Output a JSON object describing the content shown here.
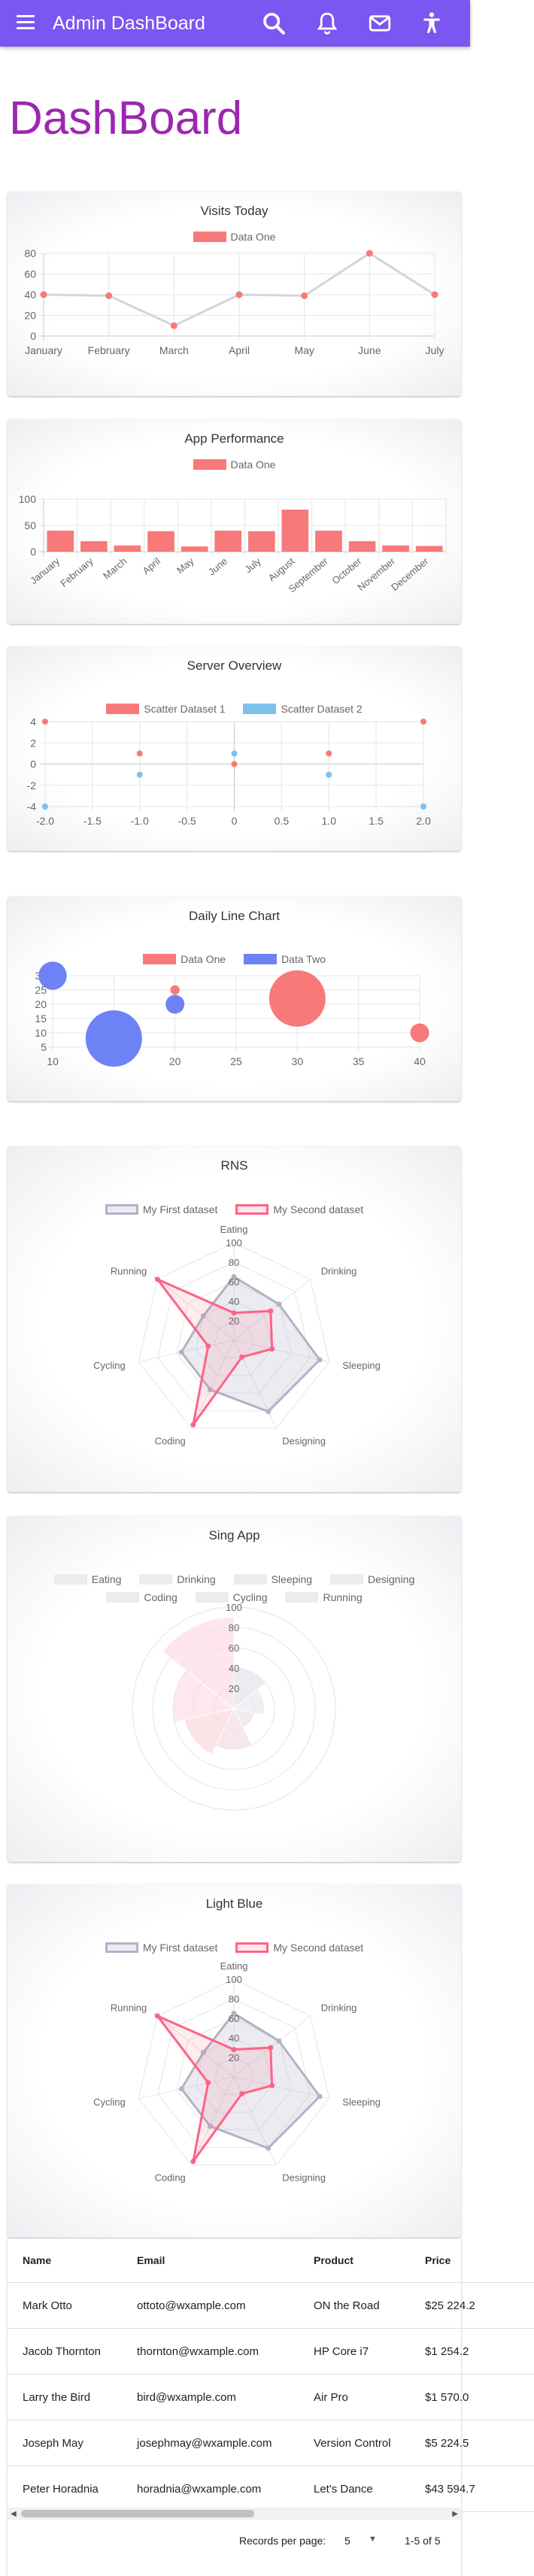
{
  "app": {
    "title": "Admin DashBoard"
  },
  "header_icons": [
    "menu-icon",
    "search-icon",
    "bell-icon",
    "mail-icon",
    "accessibility-icon"
  ],
  "page": {
    "title": "DashBoard"
  },
  "colors": {
    "primary": "#7b56f0",
    "title": "#9c27b0",
    "red": "#f87979",
    "red_border": "#ff6384",
    "blue": "#6c82f5",
    "sky": "#7ec0ee",
    "gray": "#b3b1c6"
  },
  "visits": {
    "title": "Visits Today",
    "chart_data": {
      "type": "line",
      "title": "Visits Today",
      "categories": [
        "January",
        "February",
        "March",
        "April",
        "May",
        "June",
        "July"
      ],
      "series": [
        {
          "name": "Data One",
          "values": [
            40,
            39,
            10,
            40,
            39,
            80,
            40
          ]
        }
      ],
      "ylim": [
        0,
        80
      ],
      "yticks": [
        0,
        20,
        40,
        60,
        80
      ]
    }
  },
  "performance": {
    "title": "App Performance",
    "chart_data": {
      "type": "bar",
      "title": "App Performance",
      "categories": [
        "January",
        "February",
        "March",
        "April",
        "May",
        "June",
        "July",
        "August",
        "September",
        "October",
        "November",
        "December"
      ],
      "series": [
        {
          "name": "Data One",
          "values": [
            40,
            20,
            12,
            39,
            10,
            40,
            39,
            80,
            40,
            20,
            12,
            11
          ]
        }
      ],
      "ylim": [
        0,
        100
      ],
      "yticks": [
        0,
        50,
        100
      ]
    }
  },
  "server": {
    "title": "Server Overview",
    "chart_data": {
      "type": "scatter",
      "title": "Server Overview",
      "xlim": [
        -2,
        2
      ],
      "ylim": [
        -4,
        4
      ],
      "xticks": [
        "-2.0",
        "-1.5",
        "-1.0",
        "-0.5",
        "0",
        "0.5",
        "1.0",
        "1.5",
        "2.0"
      ],
      "yticks": [
        "4",
        "2",
        "0",
        "-2",
        "-4"
      ],
      "series": [
        {
          "name": "Scatter Dataset 1",
          "points": [
            [
              -2,
              4
            ],
            [
              -1,
              1
            ],
            [
              0,
              0
            ],
            [
              1,
              1
            ],
            [
              2,
              4
            ]
          ]
        },
        {
          "name": "Scatter Dataset 2",
          "points": [
            [
              -2,
              -4
            ],
            [
              -1,
              -1
            ],
            [
              0,
              1
            ],
            [
              1,
              -1
            ],
            [
              2,
              -4
            ]
          ]
        }
      ]
    }
  },
  "daily": {
    "title": "Daily Line Chart",
    "chart_data": {
      "type": "scatter",
      "title": "Daily Line Chart",
      "xlim": [
        10,
        40
      ],
      "ylim": [
        5,
        30
      ],
      "xticks": [
        "10",
        "15",
        "20",
        "25",
        "30",
        "35",
        "40"
      ],
      "yticks": [
        "30",
        "25",
        "20",
        "15",
        "10",
        "5"
      ],
      "series": [
        {
          "name": "Data One",
          "points": [
            [
              20,
              25,
              5
            ],
            [
              30,
              22,
              30
            ],
            [
              40,
              10,
              10
            ]
          ]
        },
        {
          "name": "Data Two",
          "points": [
            [
              10,
              30,
              15
            ],
            [
              15,
              8,
              30
            ],
            [
              20,
              20,
              10
            ]
          ]
        }
      ]
    }
  },
  "rns": {
    "title": "RNS",
    "chart_data": {
      "type": "radar",
      "title": "RNS",
      "labels": [
        "Eating",
        "Drinking",
        "Sleeping",
        "Designing",
        "Coding",
        "Cycling",
        "Running"
      ],
      "rlim": [
        0,
        100
      ],
      "rticks": [
        "100",
        "80",
        "60",
        "40",
        "20"
      ],
      "series": [
        {
          "name": "My First dataset",
          "values": [
            65,
            59,
            90,
            81,
            56,
            55,
            40
          ]
        },
        {
          "name": "My Second dataset",
          "values": [
            28,
            48,
            40,
            19,
            96,
            27,
            100
          ]
        }
      ]
    }
  },
  "sing": {
    "title": "Sing App",
    "chart_data": {
      "type": "polarArea",
      "title": "Sing App",
      "labels": [
        "Eating",
        "Drinking",
        "Sleeping",
        "Designing",
        "Coding",
        "Cycling",
        "Running"
      ],
      "rlim": [
        0,
        100
      ],
      "rticks": [
        "100",
        "80",
        "60",
        "40",
        "20"
      ],
      "series": [
        {
          "name": "",
          "values": [
            40,
            30,
            20,
            40,
            50,
            60,
            90
          ]
        }
      ]
    }
  },
  "lightblue": {
    "title": "Light Blue",
    "chart_data": {
      "type": "radar",
      "title": "Light Blue",
      "labels": [
        "Eating",
        "Drinking",
        "Sleeping",
        "Designing",
        "Coding",
        "Cycling",
        "Running"
      ],
      "rlim": [
        0,
        100
      ],
      "rticks": [
        "100",
        "80",
        "60",
        "40",
        "20"
      ],
      "series": [
        {
          "name": "My First dataset",
          "values": [
            65,
            59,
            90,
            81,
            56,
            55,
            40
          ]
        },
        {
          "name": "My Second dataset",
          "values": [
            28,
            48,
            40,
            19,
            96,
            27,
            100
          ]
        }
      ]
    }
  },
  "table": {
    "columns": [
      "Name",
      "Email",
      "Product",
      "Price"
    ],
    "rows": [
      [
        "Mark Otto",
        "ottoto@wxample.com",
        "ON the Road",
        "$25 224.2"
      ],
      [
        "Jacob Thornton",
        "thornton@wxample.com",
        "HP Core i7",
        "$1 254.2"
      ],
      [
        "Larry the Bird",
        "bird@wxample.com",
        "Air Pro",
        "$1 570.0"
      ],
      [
        "Joseph May",
        "josephmay@wxample.com",
        "Version Control",
        "$5 224.5"
      ],
      [
        "Peter Horadnia",
        "horadnia@wxample.com",
        "Let's Dance",
        "$43 594.7"
      ]
    ],
    "records_label": "Records per page:",
    "per_page": "5",
    "range": "1-5 of 5"
  }
}
